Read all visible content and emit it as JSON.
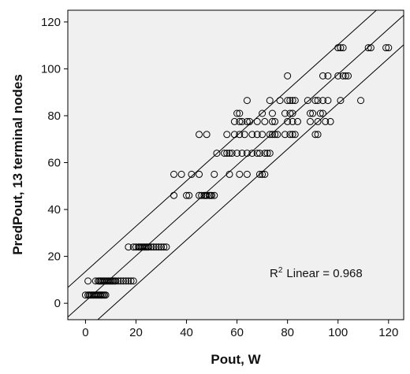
{
  "chart_data": {
    "type": "scatter",
    "title": "",
    "xlabel": "Pout, W",
    "ylabel": "PredPout, 13 terminal nodes",
    "xlim": [
      -7,
      126
    ],
    "ylim": [
      -7,
      125
    ],
    "xticks": [
      0,
      20,
      40,
      60,
      80,
      100,
      120
    ],
    "yticks": [
      0,
      20,
      40,
      60,
      80,
      100,
      120
    ],
    "grid": false,
    "legend": "none",
    "annotation": {
      "label": "Linear = 0.968",
      "r_symbol": "R",
      "superscript": "2"
    },
    "colors": {
      "plot_background": "#f0f0f0",
      "frame": "#000000",
      "marker_stroke": "#000000",
      "line": "#000000"
    },
    "marker": "open-circle",
    "series": [
      {
        "points": [
          [
            0,
            3.5
          ],
          [
            1,
            3.5
          ],
          [
            2,
            3.5
          ],
          [
            3,
            3.5
          ],
          [
            4,
            3.5
          ],
          [
            5,
            3.5
          ],
          [
            6,
            3.5
          ],
          [
            7,
            3.5
          ],
          [
            8,
            3.5
          ],
          [
            1.5,
            3.5
          ],
          [
            2.5,
            3.5
          ],
          [
            3.5,
            3.5
          ],
          [
            4.5,
            3.5
          ],
          [
            5.5,
            3.5
          ],
          [
            6.5,
            3.5
          ],
          [
            7.5,
            3.5
          ],
          [
            1,
            9.5
          ],
          [
            4,
            9.5
          ],
          [
            5,
            9.5
          ],
          [
            6,
            9.5
          ],
          [
            7,
            9.5
          ],
          [
            8,
            9.5
          ],
          [
            9,
            9.5
          ],
          [
            10,
            9.5
          ],
          [
            11,
            9.5
          ],
          [
            12,
            9.5
          ],
          [
            13,
            9.5
          ],
          [
            14,
            9.5
          ],
          [
            15,
            9.5
          ],
          [
            16,
            9.5
          ],
          [
            17,
            9.5
          ],
          [
            18,
            9.5
          ],
          [
            19,
            9.5
          ],
          [
            5.5,
            9.5
          ],
          [
            6.5,
            9.5
          ],
          [
            7.5,
            9.5
          ],
          [
            8.5,
            9.5
          ],
          [
            9.5,
            9.5
          ],
          [
            10.5,
            9.5
          ],
          [
            11.5,
            9.5
          ],
          [
            17,
            24
          ],
          [
            19,
            24
          ],
          [
            20,
            24
          ],
          [
            21,
            24
          ],
          [
            22,
            24
          ],
          [
            23,
            24
          ],
          [
            24,
            24
          ],
          [
            25,
            24
          ],
          [
            26,
            24
          ],
          [
            27,
            24
          ],
          [
            28,
            24
          ],
          [
            29,
            24
          ],
          [
            30,
            24
          ],
          [
            31,
            24
          ],
          [
            32,
            24
          ],
          [
            21.5,
            24
          ],
          [
            22.5,
            24
          ],
          [
            23.5,
            24
          ],
          [
            24.5,
            24
          ],
          [
            35,
            46
          ],
          [
            40,
            46
          ],
          [
            41,
            46
          ],
          [
            45,
            46
          ],
          [
            46,
            46
          ],
          [
            47,
            46
          ],
          [
            48,
            46
          ],
          [
            49,
            46
          ],
          [
            50,
            46
          ],
          [
            51,
            46
          ],
          [
            47.5,
            46
          ],
          [
            49.5,
            46
          ],
          [
            35,
            55
          ],
          [
            38,
            55
          ],
          [
            42,
            55
          ],
          [
            45,
            55
          ],
          [
            51,
            55
          ],
          [
            57,
            55
          ],
          [
            61,
            55
          ],
          [
            64,
            55
          ],
          [
            69,
            55
          ],
          [
            70,
            55
          ],
          [
            71,
            55
          ],
          [
            52,
            64
          ],
          [
            55,
            64
          ],
          [
            56,
            64
          ],
          [
            57,
            64
          ],
          [
            58,
            64
          ],
          [
            60,
            64
          ],
          [
            62,
            64
          ],
          [
            64,
            64
          ],
          [
            66,
            64
          ],
          [
            68,
            64
          ],
          [
            69,
            64
          ],
          [
            71,
            64
          ],
          [
            72,
            64
          ],
          [
            73,
            64
          ],
          [
            45,
            72
          ],
          [
            48,
            72
          ],
          [
            56,
            72
          ],
          [
            59,
            72
          ],
          [
            61,
            72
          ],
          [
            63,
            72
          ],
          [
            66,
            72
          ],
          [
            68,
            72
          ],
          [
            70,
            72
          ],
          [
            73,
            72
          ],
          [
            74,
            72
          ],
          [
            75,
            72
          ],
          [
            76,
            72
          ],
          [
            79,
            72
          ],
          [
            81,
            72
          ],
          [
            82,
            72
          ],
          [
            83,
            72
          ],
          [
            91,
            72
          ],
          [
            92,
            72
          ],
          [
            59,
            77.5
          ],
          [
            61,
            77.5
          ],
          [
            62,
            77.5
          ],
          [
            64,
            77.5
          ],
          [
            65,
            77.5
          ],
          [
            68,
            77.5
          ],
          [
            71,
            77.5
          ],
          [
            74,
            77.5
          ],
          [
            75,
            77.5
          ],
          [
            80,
            77.5
          ],
          [
            82,
            77.5
          ],
          [
            84,
            77.5
          ],
          [
            89,
            77.5
          ],
          [
            92,
            77.5
          ],
          [
            95,
            77.5
          ],
          [
            97,
            77.5
          ],
          [
            60,
            81
          ],
          [
            61,
            81
          ],
          [
            70,
            81
          ],
          [
            74,
            81
          ],
          [
            79,
            81
          ],
          [
            81,
            81
          ],
          [
            82,
            81
          ],
          [
            89,
            81
          ],
          [
            90,
            81
          ],
          [
            93,
            81
          ],
          [
            94,
            81
          ],
          [
            64,
            86.5
          ],
          [
            73,
            86.5
          ],
          [
            77,
            86.5
          ],
          [
            80,
            86.5
          ],
          [
            81,
            86.5
          ],
          [
            82,
            86.5
          ],
          [
            83,
            86.5
          ],
          [
            88,
            86.5
          ],
          [
            91,
            86.5
          ],
          [
            92,
            86.5
          ],
          [
            94,
            86.5
          ],
          [
            96,
            86.5
          ],
          [
            101,
            86.5
          ],
          [
            109,
            86.5
          ],
          [
            80,
            97
          ],
          [
            94,
            97
          ],
          [
            96,
            97
          ],
          [
            100,
            97
          ],
          [
            102,
            97
          ],
          [
            103,
            97
          ],
          [
            104,
            97
          ],
          [
            100,
            109
          ],
          [
            101,
            109
          ],
          [
            102,
            109
          ],
          [
            112,
            109
          ],
          [
            113,
            109
          ],
          [
            119,
            109
          ],
          [
            120,
            109
          ]
        ]
      }
    ],
    "fit_lines": [
      {
        "name": "fit",
        "intercept": 0.9,
        "slope": 0.968
      },
      {
        "name": "upper",
        "intercept": 13.5,
        "slope": 0.968
      },
      {
        "name": "lower",
        "intercept": -11.7,
        "slope": 0.968
      }
    ]
  }
}
